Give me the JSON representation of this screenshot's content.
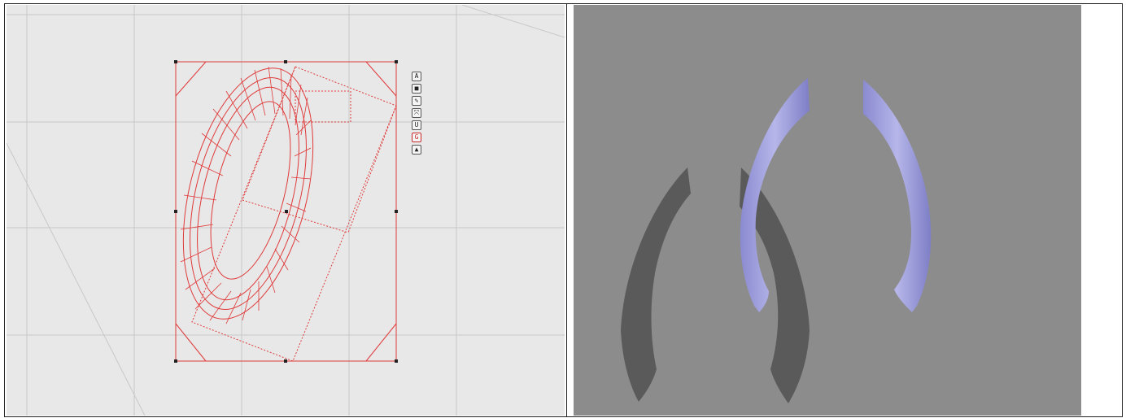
{
  "left_viewport": {
    "background_color": "#e8e8e8",
    "grid_color": "#c9c9c9",
    "wireframe_color": "#e03a3a",
    "gizmo_tools": [
      {
        "icon": "text-a-icon",
        "glyph": "A"
      },
      {
        "icon": "box-icon",
        "glyph": "■"
      },
      {
        "icon": "pen-icon",
        "glyph": "✎"
      },
      {
        "icon": "move-icon",
        "glyph": "⤧"
      },
      {
        "icon": "magnet-icon",
        "glyph": "U"
      },
      {
        "icon": "rotate-icon",
        "glyph": "G"
      },
      {
        "icon": "lock-icon",
        "glyph": "▲"
      }
    ]
  },
  "right_viewport": {
    "background_color": "#8c8c8c",
    "object_color": "#a6a6e0",
    "shadow_color": "#5a5a5a"
  }
}
